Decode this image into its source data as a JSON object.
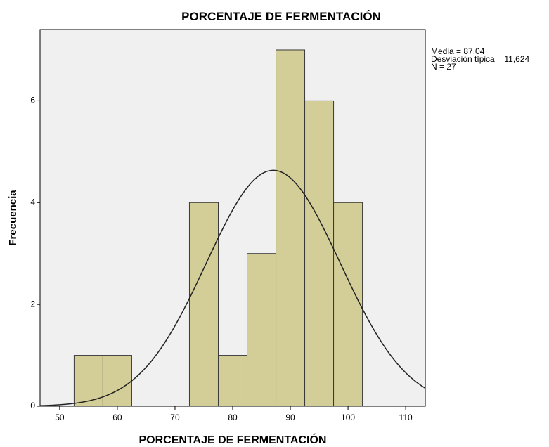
{
  "chart_data": {
    "type": "histogram",
    "title": "PORCENTAJE DE FERMENTACIÓN",
    "xlabel": "PORCENTAJE DE FERMENTACIÓN",
    "ylabel": "Frecuencia",
    "bins": [
      52.5,
      57.5,
      62.5,
      67.5,
      72.5,
      77.5,
      82.5,
      87.5,
      92.5,
      97.5,
      102.5
    ],
    "values": [
      1,
      1,
      0,
      0,
      4,
      1,
      3,
      7,
      6,
      4
    ],
    "color": "#d3ce97",
    "xlim": [
      46.6,
      113.4
    ],
    "xticks": [
      50,
      60,
      70,
      80,
      90,
      100,
      110
    ],
    "ylim": [
      0,
      7.4
    ],
    "yticks": [
      0,
      2,
      4,
      6
    ],
    "stats": [
      {
        "value": 87.04,
        "label": "Media = 87,04"
      },
      {
        "value": 11.624,
        "label": "Desviación típica = 11,624"
      },
      {
        "value": 27,
        "label": "N = 27"
      }
    ]
  }
}
